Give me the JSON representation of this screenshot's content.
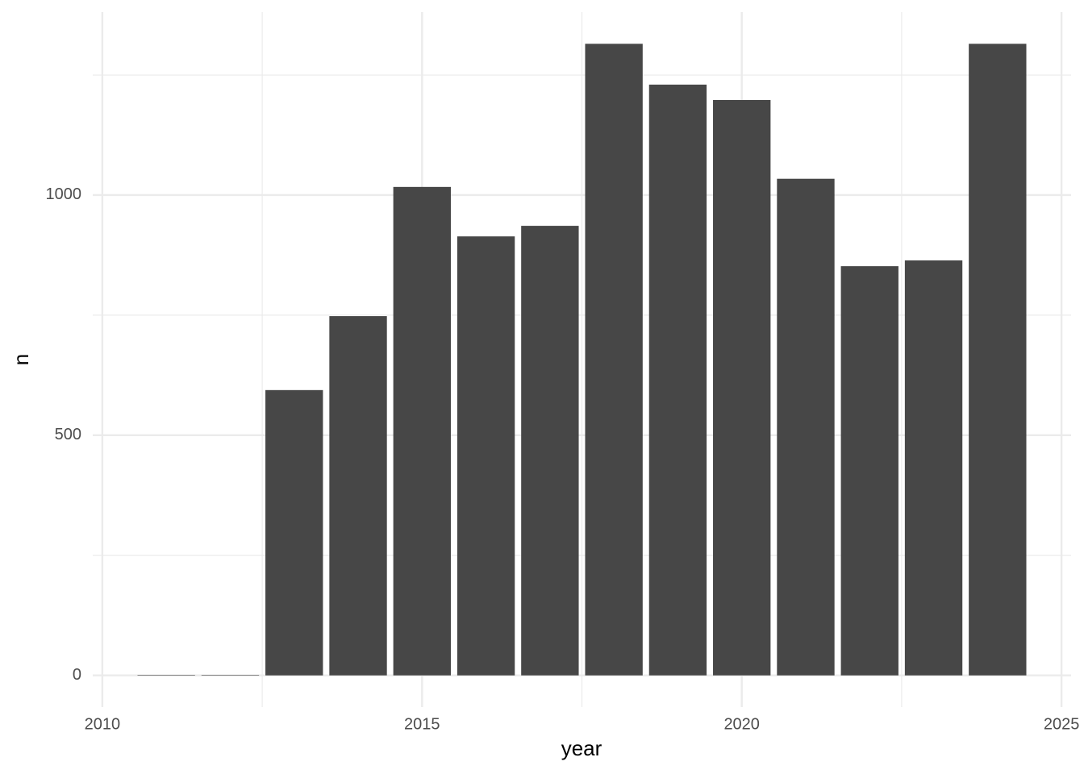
{
  "chart_data": {
    "type": "bar",
    "x_label": "year",
    "y_label": "n",
    "x": [
      2011,
      2012,
      2013,
      2014,
      2015,
      2016,
      2017,
      2018,
      2019,
      2020,
      2021,
      2022,
      2023,
      2024
    ],
    "values": [
      1,
      1,
      594,
      748,
      1017,
      914,
      936,
      1315,
      1230,
      1198,
      1034,
      852,
      864,
      1315
    ],
    "color": "#474747",
    "xlim": [
      2009.85,
      2025.15
    ],
    "xticks": [
      2010,
      2015,
      2020,
      2025
    ],
    "x_minor_ticks": [
      2012.5,
      2017.5,
      2022.5
    ],
    "ylim": [
      -66,
      1381
    ],
    "yticks": [
      0,
      500,
      1000
    ],
    "y_minor_ticks": [
      250,
      750,
      1250
    ],
    "grid": true
  }
}
